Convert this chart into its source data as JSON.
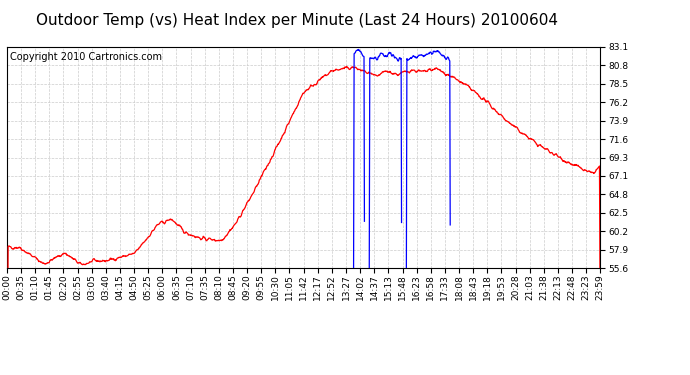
{
  "title": "Outdoor Temp (vs) Heat Index per Minute (Last 24 Hours) 20100604",
  "copyright": "Copyright 2010 Cartronics.com",
  "background_color": "#ffffff",
  "plot_background": "#ffffff",
  "grid_color": "#cccccc",
  "line_color_red": "#ff0000",
  "line_color_blue": "#0000ff",
  "yticks": [
    55.6,
    57.9,
    60.2,
    62.5,
    64.8,
    67.1,
    69.3,
    71.6,
    73.9,
    76.2,
    78.5,
    80.8,
    83.1
  ],
  "xtick_labels": [
    "00:00",
    "00:35",
    "01:10",
    "01:45",
    "02:20",
    "02:55",
    "03:05",
    "03:40",
    "04:15",
    "04:50",
    "05:25",
    "06:00",
    "06:35",
    "07:10",
    "07:35",
    "08:10",
    "08:45",
    "09:20",
    "09:55",
    "10:30",
    "11:05",
    "11:42",
    "12:17",
    "12:52",
    "13:27",
    "14:02",
    "14:37",
    "15:13",
    "15:48",
    "16:23",
    "16:58",
    "17:33",
    "18:08",
    "18:43",
    "19:18",
    "19:53",
    "20:28",
    "21:03",
    "21:38",
    "22:13",
    "22:48",
    "23:23",
    "23:59"
  ],
  "ymin": 55.6,
  "ymax": 83.1,
  "title_fontsize": 11,
  "copyright_fontsize": 7,
  "tick_fontsize": 6.5
}
